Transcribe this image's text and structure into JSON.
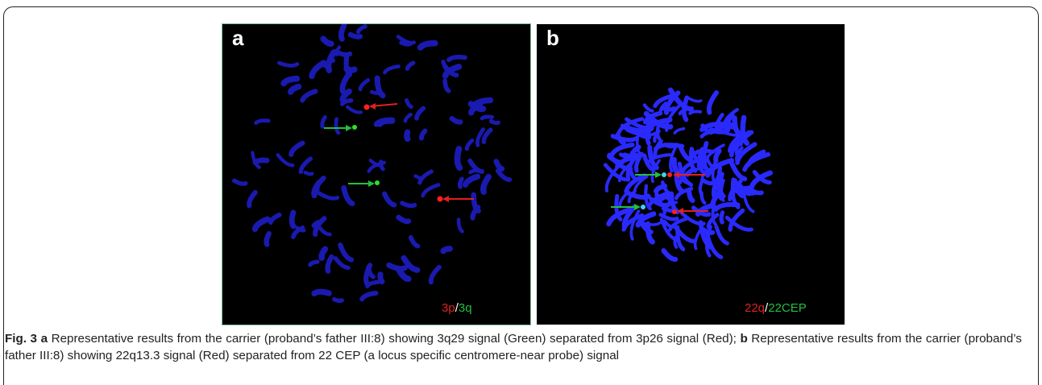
{
  "figure": {
    "panels": [
      {
        "label": "a",
        "overlay": [
          "3p",
          "/",
          "3q"
        ]
      },
      {
        "label": "b",
        "overlay": [
          "22q",
          "/",
          "22CEP"
        ]
      }
    ],
    "caption": {
      "figure_label": "Fig. 3",
      "parts": [
        {
          "label": "a",
          "text": " Representative results from the carrier (proband’s father III:8) showing 3q29 signal (Green) separated from 3p26 signal (Red); "
        },
        {
          "label": "b",
          "text": " Representative results from the carrier (proband’s father III:8) showing 22q13.3 signal (Red) separated from 22 CEP (a locus specific centromere-near probe) signal"
        }
      ]
    }
  }
}
